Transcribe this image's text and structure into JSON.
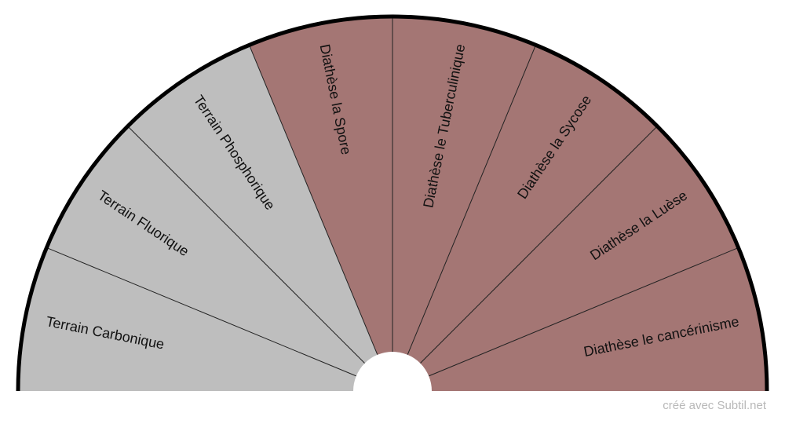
{
  "colors": {
    "terrain": "#bebebe",
    "diathese": "#a47674",
    "outline": "#000000",
    "divider": "#222222",
    "center": "#ffffff"
  },
  "segments": [
    {
      "label": "Terrain Carbonique",
      "group": "terrain"
    },
    {
      "label": "Terrain Fluorique",
      "group": "terrain"
    },
    {
      "label": "Terrain Phosphorique",
      "group": "terrain"
    },
    {
      "label": "Diathèse la Spore",
      "group": "diathese"
    },
    {
      "label": "Diathèse le Tuberculinique",
      "group": "diathese"
    },
    {
      "label": "Diathèse la Sycose",
      "group": "diathese"
    },
    {
      "label": "Diathèse la Luèse",
      "group": "diathese"
    },
    {
      "label": "Diathèse le cancérinisme",
      "group": "diathese"
    }
  ],
  "watermark": "créé avec Subtil.net"
}
